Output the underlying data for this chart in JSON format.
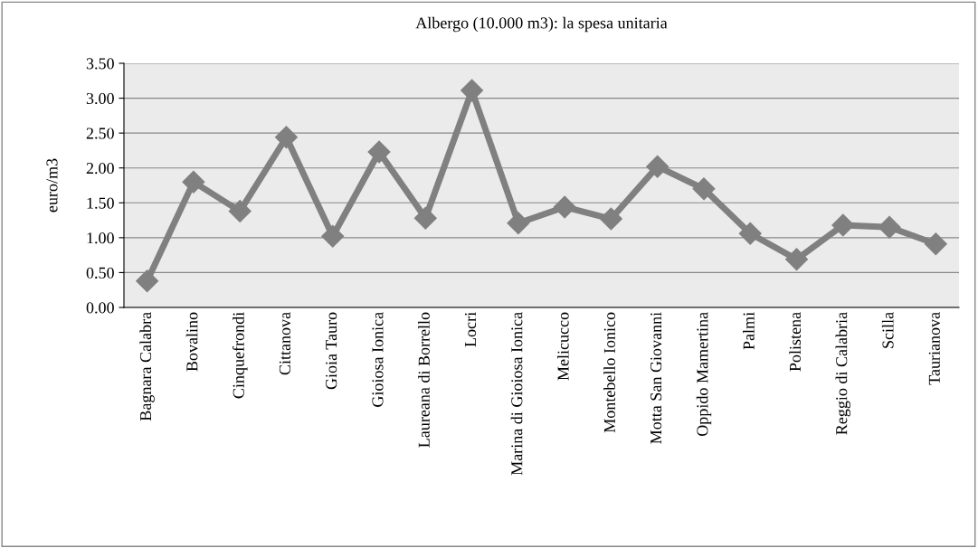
{
  "chart_data": {
    "type": "line",
    "title": "Albergo (10.000 m3): la spesa unitaria",
    "ylabel": "euro/m3",
    "categories": [
      "Bagnara Calabra",
      "Bovalino",
      "Cinquefrondi",
      "Cittanova",
      "Gioia Tauro",
      "Gioiosa Ionica",
      "Laureana di Borrello",
      "Locri",
      "Marina di Gioiosa Ionica",
      "Melicucco",
      "Montebello Ionico",
      "Motta San Giovanni",
      "Oppido Mamertina",
      "Palmi",
      "Polistena",
      "Reggio di Calabria",
      "Scilla",
      "Taurianova"
    ],
    "series": [
      {
        "color": "#808080",
        "values": [
          0.38,
          1.8,
          1.38,
          2.44,
          1.02,
          2.23,
          1.28,
          3.11,
          1.21,
          1.44,
          1.27,
          2.02,
          1.7,
          1.06,
          0.69,
          1.18,
          1.15,
          0.91
        ]
      }
    ],
    "ylim": [
      0,
      3.5
    ],
    "yticks": [
      {
        "value": 0,
        "label": "0.00"
      },
      {
        "value": 0.5,
        "label": "0.50"
      },
      {
        "value": 1,
        "label": "1.00"
      },
      {
        "value": 1.5,
        "label": "1.50"
      },
      {
        "value": 2,
        "label": "2.00"
      },
      {
        "value": 2.5,
        "label": "2.50"
      },
      {
        "value": 3,
        "label": "3.00"
      },
      {
        "value": 3.5,
        "label": "3.50"
      }
    ],
    "grid": "y",
    "marker": "diamond",
    "line_style": "solid",
    "legend": false
  }
}
